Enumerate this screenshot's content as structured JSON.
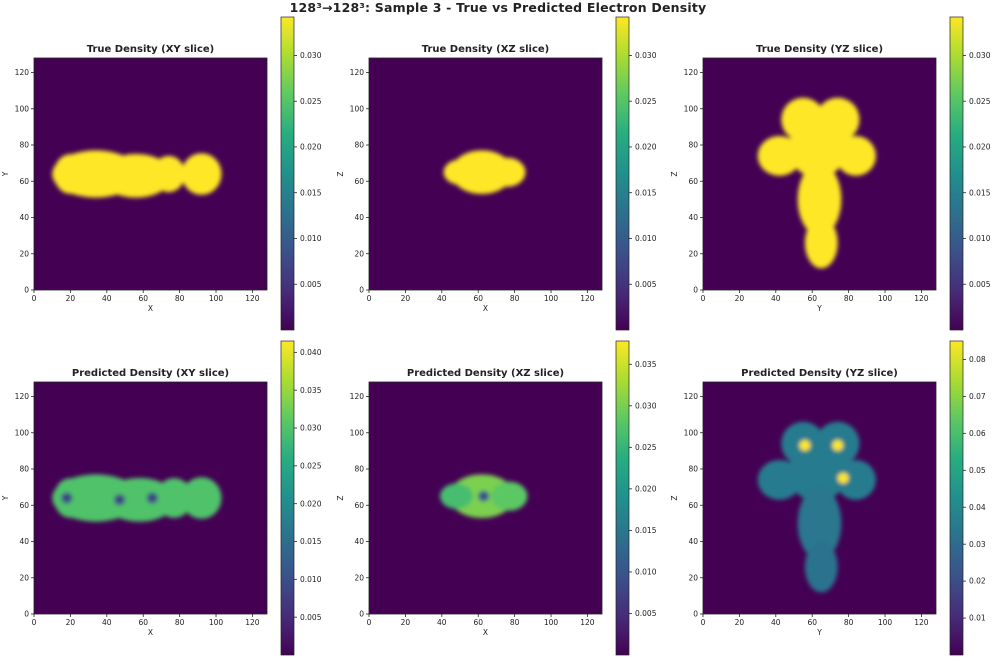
{
  "figure": {
    "title": "128³→128³: Sample 3 - True vs Predicted Electron Density"
  },
  "colormap": {
    "name": "viridis",
    "stops": [
      "#440154",
      "#472c7a",
      "#3b518b",
      "#2c718e",
      "#21908d",
      "#27ad81",
      "#5cc863",
      "#aadc32",
      "#fde725"
    ]
  },
  "chart_data": [
    {
      "type": "heatmap",
      "title": "True Density (XY slice)",
      "xlabel": "X",
      "ylabel": "Y",
      "xlim": [
        0,
        128
      ],
      "ylim": [
        0,
        128
      ],
      "xticks": [
        0,
        20,
        40,
        60,
        80,
        100,
        120
      ],
      "yticks": [
        0,
        20,
        40,
        60,
        80,
        100,
        120
      ],
      "colorbar": {
        "min": 0.0,
        "max": 0.0342,
        "ticks": [
          "0.005",
          "0.010",
          "0.015",
          "0.020",
          "0.025",
          "0.030"
        ]
      },
      "blobs": [
        {
          "cx": 34,
          "cy": 64,
          "rx": 24,
          "ry": 13,
          "v": 1.0
        },
        {
          "cx": 56,
          "cy": 63,
          "rx": 20,
          "ry": 12,
          "v": 1.0
        },
        {
          "cx": 74,
          "cy": 64,
          "rx": 9,
          "ry": 10,
          "v": 1.0
        },
        {
          "cx": 92,
          "cy": 64,
          "rx": 11,
          "ry": 11.5,
          "v": 1.0
        },
        {
          "cx": 20,
          "cy": 64,
          "rx": 9,
          "ry": 11,
          "v": 1.0
        }
      ]
    },
    {
      "type": "heatmap",
      "title": "True Density (XZ slice)",
      "xlabel": "X",
      "ylabel": "Z",
      "xlim": [
        0,
        128
      ],
      "ylim": [
        0,
        128
      ],
      "xticks": [
        0,
        20,
        40,
        60,
        80,
        100,
        120
      ],
      "yticks": [
        0,
        20,
        40,
        60,
        80,
        100,
        120
      ],
      "colorbar": {
        "min": 0.0,
        "max": 0.0342,
        "ticks": [
          "0.005",
          "0.010",
          "0.015",
          "0.020",
          "0.025",
          "0.030"
        ]
      },
      "blobs": [
        {
          "cx": 62,
          "cy": 65,
          "rx": 17,
          "ry": 12,
          "v": 1.0
        },
        {
          "cx": 50,
          "cy": 65,
          "rx": 9,
          "ry": 7,
          "v": 1.0
        },
        {
          "cx": 76,
          "cy": 65,
          "rx": 10,
          "ry": 8,
          "v": 1.0
        }
      ]
    },
    {
      "type": "heatmap",
      "title": "True Density (YZ slice)",
      "xlabel": "Y",
      "ylabel": "Z",
      "xlim": [
        0,
        128
      ],
      "ylim": [
        0,
        128
      ],
      "xticks": [
        0,
        20,
        40,
        60,
        80,
        100,
        120
      ],
      "yticks": [
        0,
        20,
        40,
        60,
        80,
        100,
        120
      ],
      "colorbar": {
        "min": 0.0,
        "max": 0.0342,
        "ticks": [
          "0.005",
          "0.010",
          "0.015",
          "0.020",
          "0.025",
          "0.030"
        ]
      },
      "blobs": [
        {
          "cx": 55,
          "cy": 94,
          "rx": 12,
          "ry": 12,
          "v": 1.0
        },
        {
          "cx": 74,
          "cy": 94,
          "rx": 12,
          "ry": 12,
          "v": 1.0
        },
        {
          "cx": 42,
          "cy": 74,
          "rx": 12,
          "ry": 11,
          "v": 1.0
        },
        {
          "cx": 84,
          "cy": 74,
          "rx": 11,
          "ry": 11,
          "v": 1.0
        },
        {
          "cx": 63,
          "cy": 78,
          "rx": 16,
          "ry": 16,
          "v": 1.0
        },
        {
          "cx": 64,
          "cy": 50,
          "rx": 12,
          "ry": 20,
          "v": 1.0
        },
        {
          "cx": 65,
          "cy": 26,
          "rx": 9,
          "ry": 14,
          "v": 1.0
        }
      ]
    },
    {
      "type": "heatmap",
      "title": "Predicted Density (XY slice)",
      "xlabel": "X",
      "ylabel": "Y",
      "xlim": [
        0,
        128
      ],
      "ylim": [
        0,
        128
      ],
      "xticks": [
        0,
        20,
        40,
        60,
        80,
        100,
        120
      ],
      "yticks": [
        0,
        20,
        40,
        60,
        80,
        100,
        120
      ],
      "colorbar": {
        "min": 0.0,
        "max": 0.0415,
        "ticks": [
          "0.005",
          "0.010",
          "0.015",
          "0.020",
          "0.025",
          "0.030",
          "0.035",
          "0.040"
        ]
      },
      "blobs": [
        {
          "cx": 34,
          "cy": 64,
          "rx": 24,
          "ry": 13,
          "v": 0.72
        },
        {
          "cx": 58,
          "cy": 63,
          "rx": 20,
          "ry": 12,
          "v": 0.72
        },
        {
          "cx": 77,
          "cy": 64,
          "rx": 10,
          "ry": 11,
          "v": 0.72
        },
        {
          "cx": 92,
          "cy": 64,
          "rx": 11,
          "ry": 11.5,
          "v": 0.72
        },
        {
          "cx": 20,
          "cy": 64,
          "rx": 9,
          "ry": 11,
          "v": 0.72
        },
        {
          "cx": 18,
          "cy": 64,
          "rx": 3,
          "ry": 3,
          "v": 0.2
        },
        {
          "cx": 47,
          "cy": 63,
          "rx": 3,
          "ry": 3,
          "v": 0.2
        },
        {
          "cx": 65,
          "cy": 64,
          "rx": 3,
          "ry": 3,
          "v": 0.2
        }
      ]
    },
    {
      "type": "heatmap",
      "title": "Predicted Density (XZ slice)",
      "xlabel": "X",
      "ylabel": "Z",
      "xlim": [
        0,
        128
      ],
      "ylim": [
        0,
        128
      ],
      "xticks": [
        0,
        20,
        40,
        60,
        80,
        100,
        120
      ],
      "yticks": [
        0,
        20,
        40,
        60,
        80,
        100,
        120
      ],
      "colorbar": {
        "min": 0.0,
        "max": 0.0378,
        "ticks": [
          "0.005",
          "0.010",
          "0.015",
          "0.020",
          "0.025",
          "0.030",
          "0.035"
        ]
      },
      "blobs": [
        {
          "cx": 62,
          "cy": 65,
          "rx": 18,
          "ry": 12,
          "v": 0.8
        },
        {
          "cx": 48,
          "cy": 65,
          "rx": 9,
          "ry": 7,
          "v": 0.7
        },
        {
          "cx": 77,
          "cy": 65,
          "rx": 10,
          "ry": 8,
          "v": 0.75
        },
        {
          "cx": 63,
          "cy": 65,
          "rx": 3,
          "ry": 3,
          "v": 0.25
        }
      ]
    },
    {
      "type": "heatmap",
      "title": "Predicted Density (YZ slice)",
      "xlabel": "Y",
      "ylabel": "Z",
      "xlim": [
        0,
        128
      ],
      "ylim": [
        0,
        128
      ],
      "xticks": [
        0,
        20,
        40,
        60,
        80,
        100,
        120
      ],
      "yticks": [
        0,
        20,
        40,
        60,
        80,
        100,
        120
      ],
      "colorbar": {
        "min": 0.0,
        "max": 0.085,
        "ticks": [
          "0.01",
          "0.02",
          "0.03",
          "0.04",
          "0.05",
          "0.06",
          "0.07",
          "0.08"
        ]
      },
      "blobs": [
        {
          "cx": 55,
          "cy": 94,
          "rx": 12,
          "ry": 12,
          "v": 0.42
        },
        {
          "cx": 74,
          "cy": 94,
          "rx": 12,
          "ry": 12,
          "v": 0.42
        },
        {
          "cx": 42,
          "cy": 74,
          "rx": 12,
          "ry": 11,
          "v": 0.42
        },
        {
          "cx": 84,
          "cy": 74,
          "rx": 11,
          "ry": 11,
          "v": 0.42
        },
        {
          "cx": 63,
          "cy": 78,
          "rx": 16,
          "ry": 16,
          "v": 0.42
        },
        {
          "cx": 64,
          "cy": 50,
          "rx": 12,
          "ry": 20,
          "v": 0.4
        },
        {
          "cx": 65,
          "cy": 26,
          "rx": 9,
          "ry": 14,
          "v": 0.38
        },
        {
          "cx": 56,
          "cy": 93,
          "rx": 3,
          "ry": 3,
          "v": 1.0
        },
        {
          "cx": 74,
          "cy": 93,
          "rx": 3,
          "ry": 3,
          "v": 1.0
        },
        {
          "cx": 77,
          "cy": 75,
          "rx": 3,
          "ry": 3,
          "v": 1.0
        }
      ]
    }
  ]
}
